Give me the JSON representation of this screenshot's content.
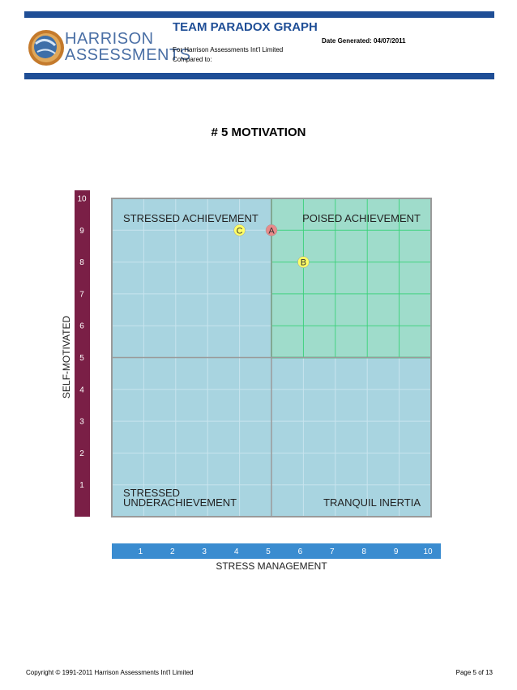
{
  "header": {
    "title": "TEAM PARADOX GRAPH",
    "date_generated": "Date Generated: 04/07/2011",
    "for_line": "For Harrison Assessments Int'l Limited",
    "compared_to": "Compared to:",
    "logo_line1": "HARRISON",
    "logo_line2": "ASSESSMENTS"
  },
  "section_title": "# 5 MOTIVATION",
  "chart_data": {
    "type": "scatter",
    "xlabel": "STRESS MANAGEMENT",
    "ylabel": "SELF-MOTIVATED",
    "xlim": [
      0,
      10
    ],
    "ylim": [
      0,
      10
    ],
    "x_ticks": [
      "1",
      "2",
      "3",
      "4",
      "5",
      "6",
      "7",
      "8",
      "9",
      "10"
    ],
    "y_ticks": [
      "1",
      "2",
      "3",
      "4",
      "5",
      "6",
      "7",
      "8",
      "9",
      "10"
    ],
    "grid": true,
    "quadrants": [
      {
        "position": "top-left",
        "label": "STRESSED ACHIEVEMENT",
        "color": "#a8d4e0"
      },
      {
        "position": "top-right",
        "label": "POISED ACHIEVEMENT",
        "color": "#9fdccb"
      },
      {
        "position": "bottom-left",
        "label_lines": [
          "STRESSED",
          "UNDERACHIEVEMENT"
        ],
        "color": "#a8d4e0"
      },
      {
        "position": "bottom-right",
        "label": "TRANQUIL INERTIA",
        "color": "#a8d4e0"
      }
    ],
    "points": [
      {
        "label": "C",
        "x": 4.0,
        "y": 9.0,
        "color": "#ffff66"
      },
      {
        "label": "A",
        "x": 5.0,
        "y": 9.0,
        "color": "#e88a8a"
      },
      {
        "label": "B",
        "x": 6.0,
        "y": 8.0,
        "color": "#ffff66"
      }
    ],
    "colors": {
      "y_axis_bar": "#7a1f46",
      "x_axis_bar": "#3a8cd0",
      "grid_blue": "#c8e4ee",
      "grid_green": "#3bd17a",
      "border": "#9a9a9a"
    }
  },
  "footer": {
    "copyright": "Copyright © 1991-2011 Harrison Assessments Int'l Limited",
    "page": "Page 5 of 13"
  }
}
